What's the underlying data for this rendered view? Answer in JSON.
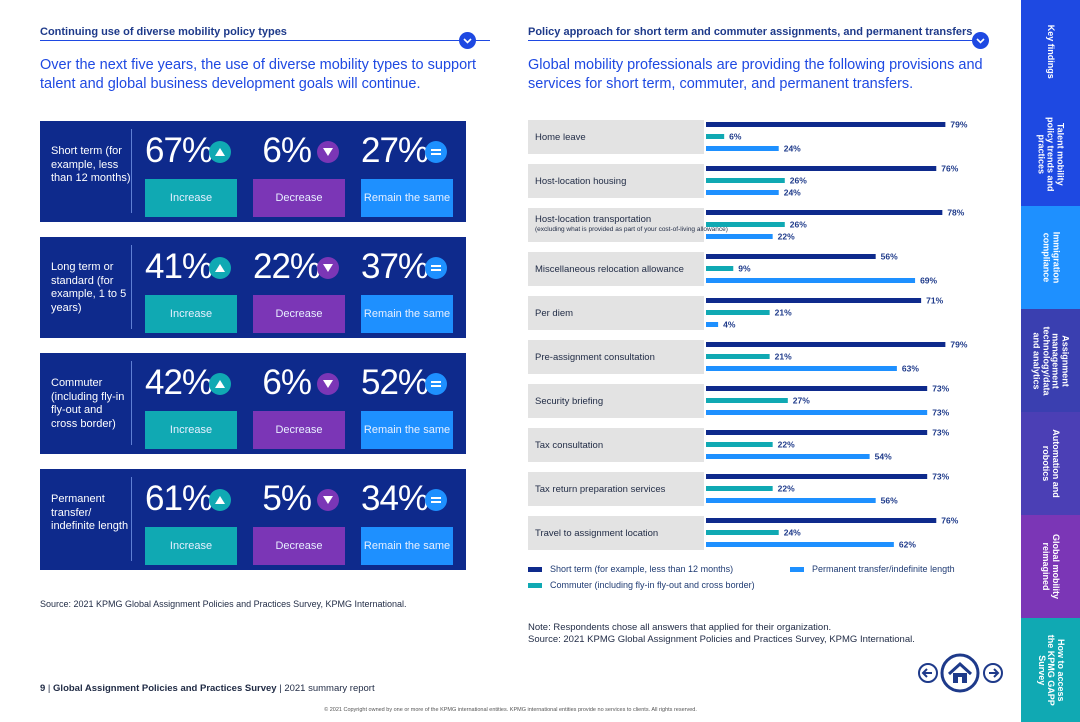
{
  "left": {
    "title": "Continuing use of diverse mobility policy types",
    "intro": "Over the next five years, the use of diverse mobility types to support talent and global business development goals will continue.",
    "categories": [
      {
        "label": "Short term (for example, less than 12 months)",
        "increase": "67%",
        "decrease": "6%",
        "same": "27%"
      },
      {
        "label": "Long term or standard (for example, 1 to 5 years)",
        "increase": "41%",
        "decrease": "22%",
        "same": "37%"
      },
      {
        "label": "Commuter (including fly-in fly-out and cross border)",
        "increase": "42%",
        "decrease": "6%",
        "same": "52%"
      },
      {
        "label": "Permanent transfer/ indefinite length",
        "increase": "61%",
        "decrease": "5%",
        "same": "34%"
      }
    ],
    "pill_labels": {
      "increase": "Increase",
      "decrease": "Decrease",
      "same": "Remain the same"
    },
    "source": "Source: 2021 KPMG Global Assignment Policies and Practices Survey, KPMG International."
  },
  "right": {
    "title": "Policy approach for short term and commuter assignments, and permanent transfers",
    "intro": "Global mobility professionals are providing the following provisions and services for short term, commuter, and permanent transfers.",
    "note": "Note: Respondents chose all answers that applied for their organization.",
    "source": "Source: 2021 KPMG Global Assignment Policies and Practices Survey, KPMG International."
  },
  "chart_data": {
    "type": "bar",
    "orientation": "horizontal",
    "title": "Policy approach for short term and commuter assignments, and permanent transfers",
    "categories": [
      {
        "name": "Home leave",
        "sub": ""
      },
      {
        "name": "Host-location housing",
        "sub": ""
      },
      {
        "name": "Host-location transportation",
        "sub": "(excluding what is provided as part of your cost-of-living allowance)"
      },
      {
        "name": "Miscellaneous relocation allowance",
        "sub": ""
      },
      {
        "name": "Per diem",
        "sub": ""
      },
      {
        "name": "Pre-assignment consultation",
        "sub": ""
      },
      {
        "name": "Security briefing",
        "sub": ""
      },
      {
        "name": "Tax consultation",
        "sub": ""
      },
      {
        "name": "Tax return preparation services",
        "sub": ""
      },
      {
        "name": "Travel to assignment location",
        "sub": ""
      }
    ],
    "series": [
      {
        "name": "Short term (for example, less than 12 months)",
        "color": "#0e2a8c",
        "values": [
          79,
          76,
          78,
          56,
          71,
          79,
          73,
          73,
          73,
          76
        ]
      },
      {
        "name": "Commuter (including fly-in fly-out and cross border)",
        "color": "#10a9b3",
        "values": [
          6,
          26,
          26,
          9,
          21,
          21,
          27,
          22,
          22,
          24
        ]
      },
      {
        "name": "Permanent transfer/indefinite length",
        "color": "#1e90ff",
        "values": [
          24,
          24,
          22,
          69,
          4,
          63,
          73,
          54,
          56,
          62
        ]
      }
    ],
    "unit": "%",
    "xlim": [
      0,
      100
    ]
  },
  "nav": {
    "tabs": [
      {
        "label": "Key findings",
        "color": "#1e49e2"
      },
      {
        "label": "Talent mobility\npolicy trends and\npractices",
        "color": "#1e49e2"
      },
      {
        "label": "Immigration\ncompliance",
        "color": "#1e90ff"
      },
      {
        "label": "Assignment\nmanagement\ntechnology/data\nand analytics",
        "color": "#3a3fb0"
      },
      {
        "label": "Automation and\nrobotics",
        "color": "#4b3fb5"
      },
      {
        "label": "Global mobility\nreimagined",
        "color": "#7b36b6"
      },
      {
        "label": "How to access\nthe KPMG GAPP\nSurvey",
        "color": "#10a9b3"
      }
    ]
  },
  "footer": {
    "page": "9",
    "doc_title": "Global Assignment Policies and Practices Survey",
    "doc_sub": "2021 summary report",
    "copyright": "© 2021 Copyright owned by one or more of the KPMG international entities. KPMG international entities provide no services to clients. All rights reserved."
  }
}
